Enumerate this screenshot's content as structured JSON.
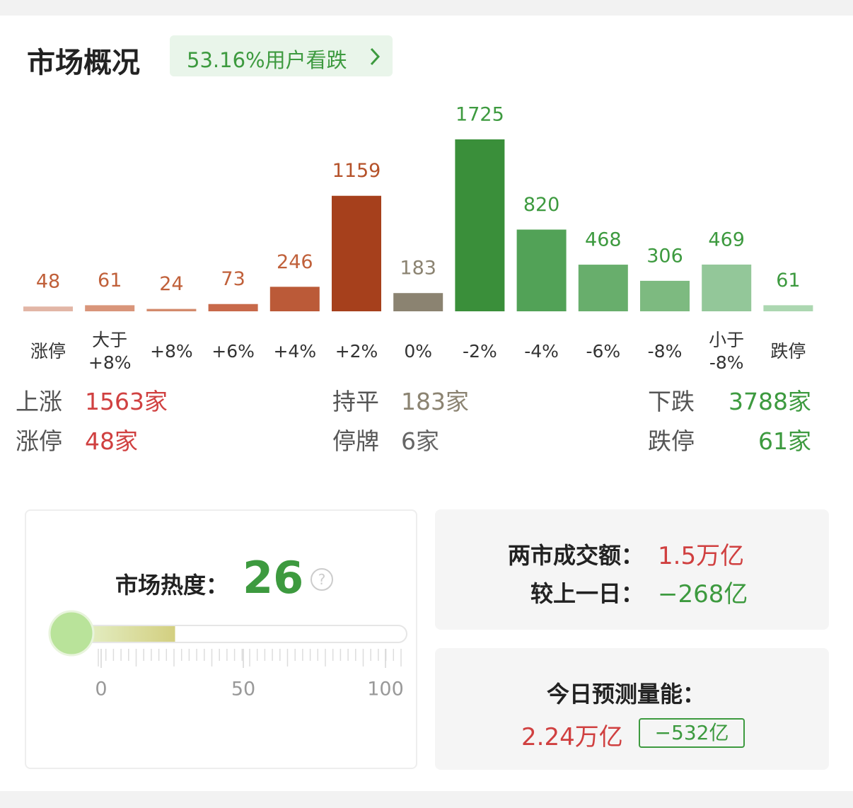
{
  "header": {
    "title": "市场概况",
    "badge": "53.16%用户看跌"
  },
  "chart_data": {
    "type": "bar",
    "categories": [
      "涨停",
      "大于\n+8%",
      "+8%",
      "+6%",
      "+4%",
      "+2%",
      "0%",
      "-2%",
      "-4%",
      "-6%",
      "-8%",
      "小于\n-8%",
      "跌停"
    ],
    "values": [
      48,
      61,
      24,
      73,
      246,
      1159,
      183,
      1725,
      820,
      468,
      306,
      469,
      61
    ],
    "colors": [
      "#e2b6a6",
      "#d9957a",
      "#d38a6c",
      "#c8694a",
      "#bb5a38",
      "#a6401c",
      "#8b8371",
      "#3a8f3a",
      "#52a257",
      "#68ae6c",
      "#7dba80",
      "#93c799",
      "#acd7b1"
    ],
    "label_colors": [
      "#c0603a",
      "#c0603a",
      "#c0603a",
      "#c0603a",
      "#c0603a",
      "#b5522a",
      "#8b8371",
      "#3d9a3f",
      "#3d9a3f",
      "#3d9a3f",
      "#3d9a3f",
      "#3d9a3f",
      "#3d9a3f"
    ]
  },
  "stats": {
    "rows": [
      [
        {
          "label": "上涨",
          "value": "1563家"
        },
        {
          "label": "持平",
          "value": "183家"
        },
        {
          "label": "下跌",
          "value": "3788家"
        }
      ],
      [
        {
          "label": "涨停",
          "value": "48家"
        },
        {
          "label": "停牌",
          "value": "6家"
        },
        {
          "label": "跌停",
          "value": "61家"
        }
      ]
    ]
  },
  "heat": {
    "label": "市场热度：",
    "value": 26,
    "help": "?",
    "min": 0,
    "max": 100,
    "ticks": [
      0,
      50,
      100
    ]
  },
  "turnover": {
    "label": "两市成交额：",
    "value": "1.5万亿",
    "change_label": "较上一日：",
    "change": "−268亿"
  },
  "forecast": {
    "label": "今日预测量能：",
    "value": "2.24万亿",
    "change": "−532亿"
  }
}
